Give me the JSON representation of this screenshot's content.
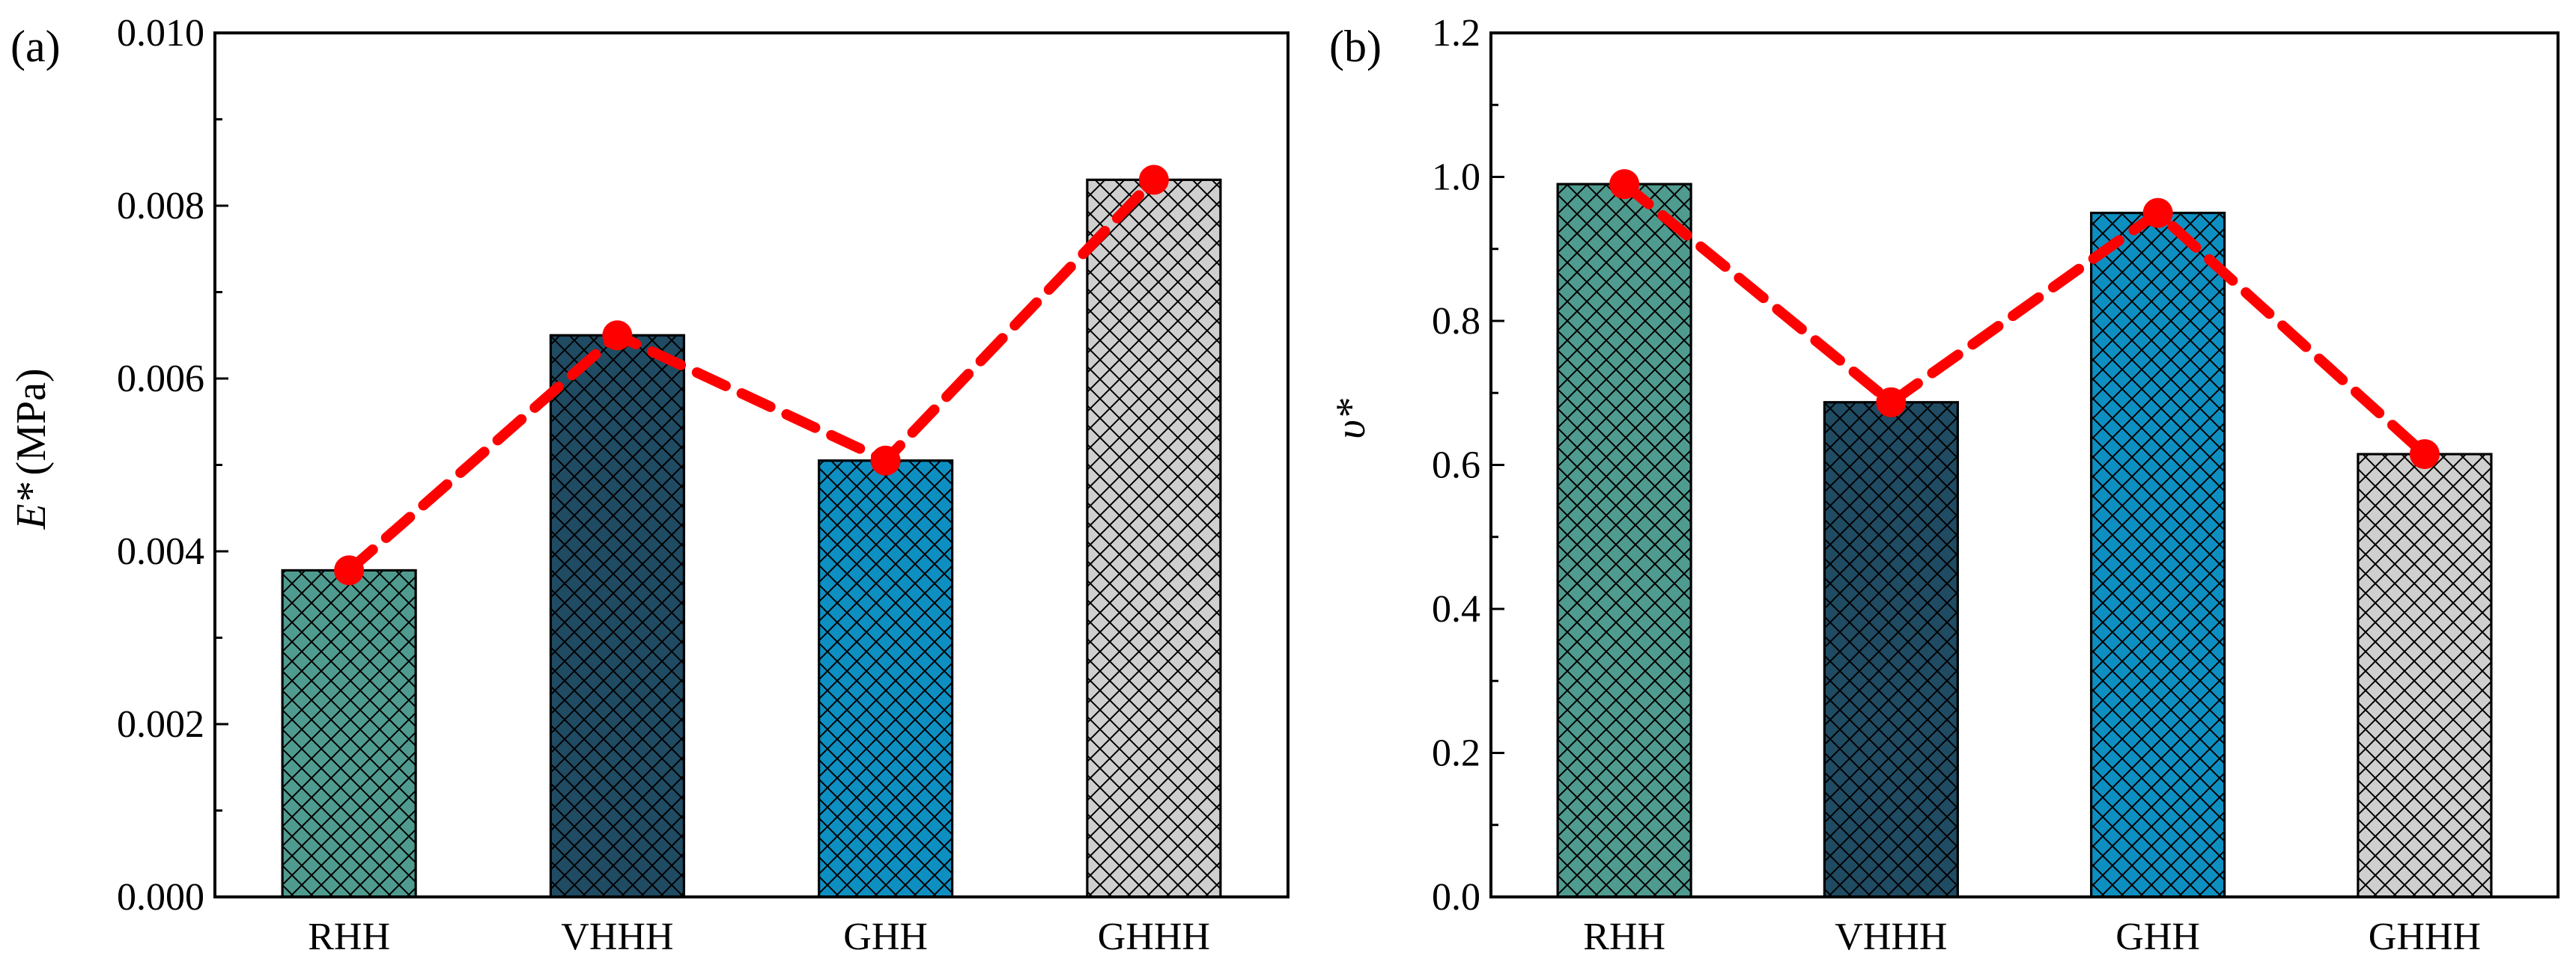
{
  "chart_data": [
    {
      "type": "bar",
      "panel_label": "(a)",
      "categories": [
        "RHH",
        "VHHH",
        "GHH",
        "GHHH"
      ],
      "values": [
        0.00378,
        0.0065,
        0.00505,
        0.0083
      ],
      "line_values": [
        0.00378,
        0.0065,
        0.00505,
        0.0083
      ],
      "bar_colors": [
        "#4f9b8f",
        "#1f4b63",
        "#0e8fc1",
        "#cfcfcf"
      ],
      "line_color": "#ff0000",
      "ylabel_symbol": "E*",
      "ylabel_unit": "(MPa)",
      "xlabel": "",
      "ylim": [
        0,
        0.01
      ],
      "yticks": [
        "0.000",
        "0.002",
        "0.004",
        "0.006",
        "0.008",
        "0.010"
      ]
    },
    {
      "type": "bar",
      "panel_label": "(b)",
      "categories": [
        "RHH",
        "VHHH",
        "GHH",
        "GHHH"
      ],
      "values": [
        0.99,
        0.687,
        0.95,
        0.615
      ],
      "line_values": [
        0.99,
        0.687,
        0.95,
        0.615
      ],
      "bar_colors": [
        "#4f9b8f",
        "#1f4b63",
        "#0e8fc1",
        "#cfcfcf"
      ],
      "line_color": "#ff0000",
      "ylabel_symbol": "υ*",
      "ylabel_unit": "",
      "xlabel": "",
      "ylim": [
        0,
        1.2
      ],
      "yticks": [
        "0.0",
        "0.2",
        "0.4",
        "0.6",
        "0.8",
        "1.0",
        "1.2"
      ]
    }
  ]
}
